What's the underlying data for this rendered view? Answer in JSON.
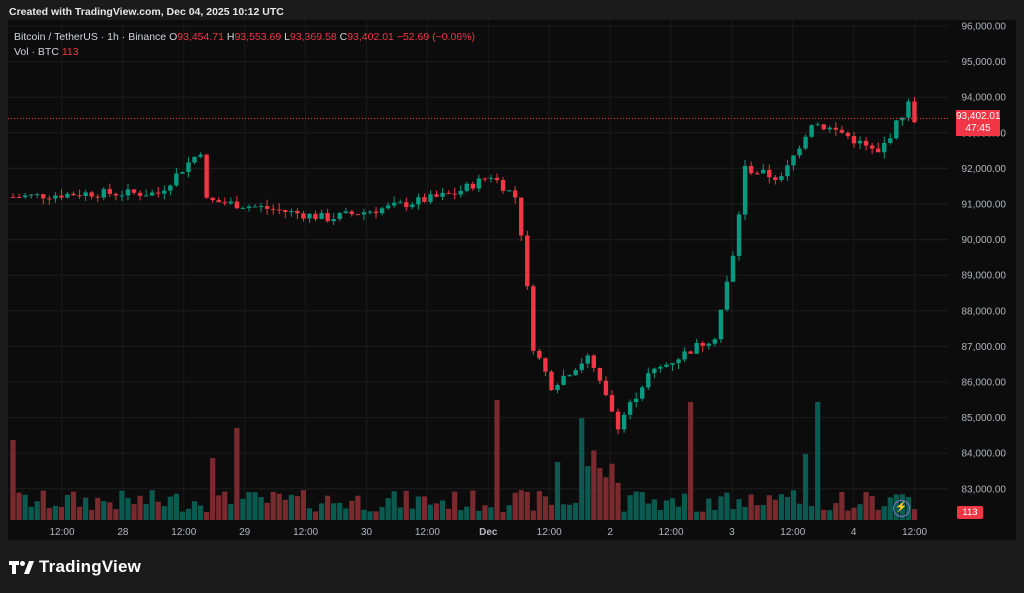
{
  "header": {
    "created_text": "Created with TradingView.com, Dec 04, 2025 10:12 UTC"
  },
  "legend": {
    "symbol": "Bitcoin / TetherUS · 1h · Binance",
    "open_label": "O",
    "open": "93,454.71",
    "high_label": "H",
    "high": "93,553.69",
    "low_label": "L",
    "low": "93,369.58",
    "close_label": "C",
    "close": "93,402.01",
    "change": "−52.69 (−0.06%)",
    "vol_label": "Vol · BTC",
    "vol_value": "113"
  },
  "price_tag": {
    "price": "93,402.01",
    "countdown": "47:45"
  },
  "volume_tag": "113",
  "footer": {
    "brand": "TradingView"
  },
  "colors": {
    "up": "#089981",
    "down": "#f23645",
    "vol_up": "#0b5a4f",
    "vol_down": "#7a2a2e",
    "background": "#0c0c0c"
  },
  "chart_data": {
    "type": "candlestick",
    "interval": "1h",
    "y_axis": {
      "range": [
        82500,
        96000
      ],
      "side": "right",
      "ticks": [
        "96,000.00",
        "95,000.00",
        "94,000.00",
        "93,000.00",
        "92,000.00",
        "91,000.00",
        "90,000.00",
        "89,000.00",
        "88,000.00",
        "87,000.00",
        "86,000.00",
        "85,000.00",
        "84,000.00",
        "83,000.00"
      ]
    },
    "x_axis": {
      "ticks": [
        "12:00",
        "28",
        "12:00",
        "29",
        "12:00",
        "30",
        "12:00",
        "Dec",
        "12:00",
        "2",
        "12:00",
        "3",
        "12:00",
        "4",
        "12:00"
      ]
    },
    "last_price": 93402.01,
    "grid": true,
    "anchors": [
      {
        "label": "27 12:00",
        "price": 91200
      },
      {
        "label": "27 20:00",
        "price": 91300
      },
      {
        "label": "28 06:00",
        "price": 91300
      },
      {
        "label": "28 13:00",
        "price": 92500
      },
      {
        "label": "28 14:00",
        "price": 91100
      },
      {
        "label": "29 00:00",
        "price": 90900
      },
      {
        "label": "29 12:00",
        "price": 90600
      },
      {
        "label": "30 00:00",
        "price": 90900
      },
      {
        "label": "30 12:00",
        "price": 91300
      },
      {
        "label": "30 18:00",
        "price": 91800
      },
      {
        "label": "30 23:00",
        "price": 91200
      },
      {
        "label": "Dec 1 00:00",
        "price": 90200
      },
      {
        "label": "Dec 1 02:00",
        "price": 87000
      },
      {
        "label": "Dec 1 06:00",
        "price": 85900
      },
      {
        "label": "Dec 1 12:00",
        "price": 86700
      },
      {
        "label": "Dec 1 18:00",
        "price": 84800
      },
      {
        "label": "Dec 2 00:00",
        "price": 86200
      },
      {
        "label": "Dec 2 06:00",
        "price": 86800
      },
      {
        "label": "Dec 2 12:00",
        "price": 87300
      },
      {
        "label": "Dec 2 15:00",
        "price": 89500
      },
      {
        "label": "Dec 2 18:00",
        "price": 92000
      },
      {
        "label": "Dec 3 00:00",
        "price": 91700
      },
      {
        "label": "Dec 3 06:00",
        "price": 93300
      },
      {
        "label": "Dec 3 12:00",
        "price": 93000
      },
      {
        "label": "Dec 3 18:00",
        "price": 92400
      },
      {
        "label": "Dec 4 00:00",
        "price": 93800
      },
      {
        "label": "Dec 4 10:00",
        "price": 93402
      }
    ]
  }
}
